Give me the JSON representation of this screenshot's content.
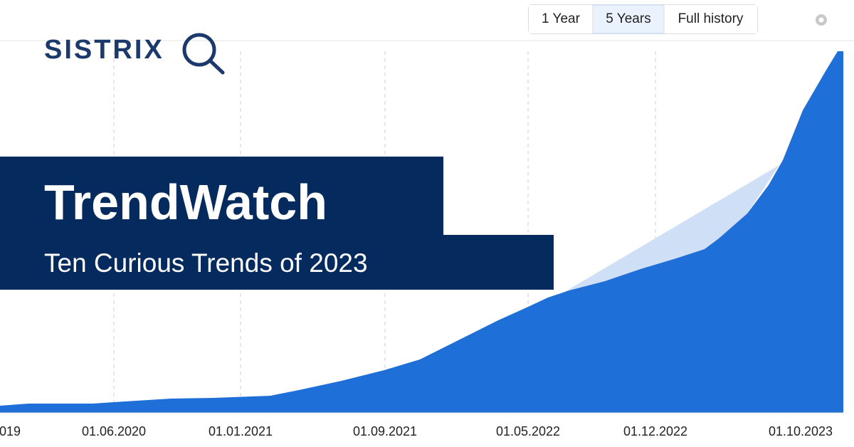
{
  "logo": {
    "text": "SISTRIX"
  },
  "range_buttons": [
    {
      "label": "1 Year",
      "selected": false
    },
    {
      "label": "5 Years",
      "selected": true
    },
    {
      "label": "Full history",
      "selected": false
    }
  ],
  "banner": {
    "title": "TrendWatch",
    "subtitle": "Ten Curious Trends of 2023"
  },
  "x_axis_labels": [
    "019",
    "01.06.2020",
    "01.01.2021",
    "01.09.2021",
    "01.05.2022",
    "01.12.2022",
    "01.10.2023"
  ]
}
